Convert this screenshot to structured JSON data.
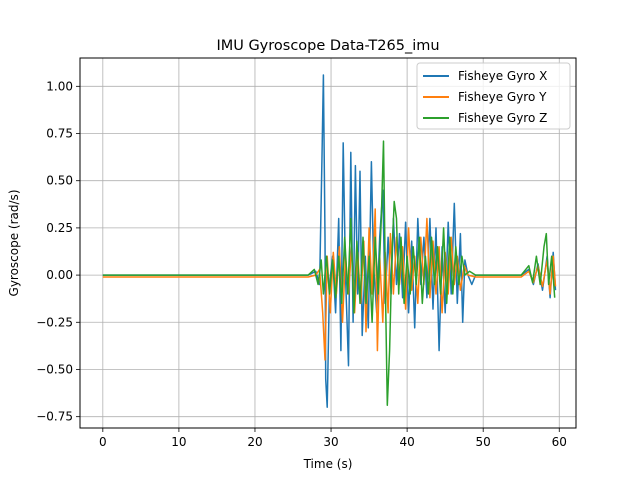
{
  "chart_data": {
    "type": "line",
    "title": "IMU Gyroscope Data-T265_imu",
    "xlabel": "Time (s)",
    "ylabel": "Gyroscope (rad/s)",
    "xlim": [
      -3,
      62.2
    ],
    "ylim": [
      -0.81,
      1.15
    ],
    "xticks": [
      0,
      10,
      20,
      30,
      40,
      50,
      60
    ],
    "yticks": [
      -0.75,
      -0.5,
      -0.25,
      0.0,
      0.25,
      0.5,
      0.75,
      1.0
    ],
    "xtick_labels": [
      "0",
      "10",
      "20",
      "30",
      "40",
      "50",
      "60"
    ],
    "ytick_labels": [
      "−0.75",
      "−0.50",
      "−0.25",
      "0.00",
      "0.25",
      "0.50",
      "0.75",
      "1.00"
    ],
    "grid": true,
    "legend_position": "top-right",
    "series": [
      {
        "name": "Fisheye Gyro X",
        "color": "#1f77b4",
        "points": [
          [
            0,
            0.0
          ],
          [
            5,
            0.0
          ],
          [
            10,
            0.0
          ],
          [
            15,
            0.0
          ],
          [
            20,
            0.0
          ],
          [
            25,
            0.0
          ],
          [
            27,
            0.0
          ],
          [
            28,
            0.02
          ],
          [
            28.5,
            -0.05
          ],
          [
            28.8,
            0.6
          ],
          [
            29,
            1.06
          ],
          [
            29.2,
            0.2
          ],
          [
            29.3,
            -0.55
          ],
          [
            29.5,
            -0.7
          ],
          [
            29.8,
            -0.05
          ],
          [
            30.2,
            0.1
          ],
          [
            30.6,
            -0.2
          ],
          [
            31,
            0.3
          ],
          [
            31.3,
            -0.4
          ],
          [
            31.6,
            0.7
          ],
          [
            31.9,
            0.0
          ],
          [
            32.3,
            -0.48
          ],
          [
            32.6,
            0.65
          ],
          [
            32.9,
            -0.25
          ],
          [
            33.2,
            0.58
          ],
          [
            33.5,
            -0.1
          ],
          [
            33.8,
            0.55
          ],
          [
            34.1,
            -0.32
          ],
          [
            34.5,
            0.1
          ],
          [
            34.9,
            -0.28
          ],
          [
            35.3,
            0.6
          ],
          [
            35.6,
            0.05
          ],
          [
            36,
            -0.2
          ],
          [
            36.4,
            0.2
          ],
          [
            36.8,
            0.45
          ],
          [
            37.1,
            -0.15
          ],
          [
            37.5,
            0.2
          ],
          [
            37.9,
            -0.1
          ],
          [
            38.2,
            0.3
          ],
          [
            38.6,
            -0.05
          ],
          [
            39,
            0.22
          ],
          [
            39.4,
            -0.12
          ],
          [
            39.8,
            0.28
          ],
          [
            40.2,
            -0.2
          ],
          [
            40.6,
            0.18
          ],
          [
            41,
            -0.28
          ],
          [
            41.4,
            0.3
          ],
          [
            41.8,
            -0.05
          ],
          [
            42.2,
            0.2
          ],
          [
            42.6,
            -0.12
          ],
          [
            43,
            0.3
          ],
          [
            43.4,
            -0.18
          ],
          [
            43.8,
            0.25
          ],
          [
            44.2,
            -0.4
          ],
          [
            44.6,
            0.15
          ],
          [
            45,
            -0.2
          ],
          [
            45.4,
            0.28
          ],
          [
            45.8,
            -0.1
          ],
          [
            46.2,
            0.38
          ],
          [
            46.6,
            -0.15
          ],
          [
            47,
            0.22
          ],
          [
            47.3,
            -0.25
          ],
          [
            47.6,
            0.08
          ],
          [
            48,
            0.0
          ],
          [
            48.5,
            -0.05
          ],
          [
            49,
            0.0
          ],
          [
            52,
            0.0
          ],
          [
            55,
            0.0
          ],
          [
            56,
            0.03
          ],
          [
            56.6,
            -0.05
          ],
          [
            57.2,
            0.06
          ],
          [
            57.8,
            -0.08
          ],
          [
            58.4,
            0.1
          ],
          [
            58.8,
            -0.12
          ],
          [
            59.2,
            0.12
          ],
          [
            59.5,
            -0.08
          ]
        ]
      },
      {
        "name": "Fisheye Gyro Y",
        "color": "#ff7f0e",
        "points": [
          [
            0,
            -0.01
          ],
          [
            5,
            -0.01
          ],
          [
            10,
            -0.01
          ],
          [
            15,
            -0.01
          ],
          [
            20,
            -0.01
          ],
          [
            25,
            -0.01
          ],
          [
            27,
            -0.01
          ],
          [
            28,
            0.0
          ],
          [
            28.5,
            0.03
          ],
          [
            28.9,
            -0.2
          ],
          [
            29.2,
            -0.45
          ],
          [
            29.5,
            0.1
          ],
          [
            29.9,
            -0.2
          ],
          [
            30.3,
            0.12
          ],
          [
            30.7,
            -0.1
          ],
          [
            31.1,
            0.15
          ],
          [
            31.5,
            -0.25
          ],
          [
            31.9,
            0.1
          ],
          [
            32.3,
            -0.1
          ],
          [
            32.7,
            0.15
          ],
          [
            33.1,
            -0.2
          ],
          [
            33.5,
            0.12
          ],
          [
            33.9,
            -0.15
          ],
          [
            34.3,
            0.18
          ],
          [
            34.6,
            -0.3
          ],
          [
            35,
            0.25
          ],
          [
            35.4,
            -0.1
          ],
          [
            35.8,
            0.35
          ],
          [
            36.1,
            -0.4
          ],
          [
            36.4,
            0.1
          ],
          [
            36.8,
            -0.25
          ],
          [
            37.1,
            0.12
          ],
          [
            37.5,
            -0.2
          ],
          [
            37.8,
            0.22
          ],
          [
            38.2,
            -0.1
          ],
          [
            38.6,
            0.2
          ],
          [
            39,
            -0.05
          ],
          [
            39.4,
            0.15
          ],
          [
            39.8,
            -0.18
          ],
          [
            40.2,
            0.25
          ],
          [
            40.6,
            -0.08
          ],
          [
            41,
            0.1
          ],
          [
            41.4,
            -0.15
          ],
          [
            41.8,
            0.2
          ],
          [
            42.2,
            -0.05
          ],
          [
            42.6,
            0.3
          ],
          [
            43,
            -0.12
          ],
          [
            43.4,
            0.18
          ],
          [
            43.8,
            -0.1
          ],
          [
            44.2,
            0.15
          ],
          [
            44.6,
            -0.2
          ],
          [
            45,
            0.12
          ],
          [
            45.4,
            -0.1
          ],
          [
            45.8,
            0.2
          ],
          [
            46.2,
            -0.05
          ],
          [
            46.6,
            0.1
          ],
          [
            47,
            -0.08
          ],
          [
            47.5,
            0.05
          ],
          [
            48,
            0.0
          ],
          [
            49,
            -0.01
          ],
          [
            52,
            -0.01
          ],
          [
            55,
            -0.01
          ],
          [
            56,
            0.02
          ],
          [
            56.6,
            -0.04
          ],
          [
            57.2,
            0.05
          ],
          [
            57.8,
            -0.06
          ],
          [
            58.4,
            0.08
          ],
          [
            58.8,
            -0.1
          ],
          [
            59.2,
            0.1
          ],
          [
            59.5,
            -0.06
          ]
        ]
      },
      {
        "name": "Fisheye Gyro Z",
        "color": "#2ca02c",
        "points": [
          [
            0,
            0.0
          ],
          [
            5,
            0.0
          ],
          [
            10,
            0.0
          ],
          [
            15,
            0.0
          ],
          [
            20,
            0.0
          ],
          [
            25,
            0.0
          ],
          [
            27,
            0.0
          ],
          [
            27.8,
            0.03
          ],
          [
            28.3,
            -0.05
          ],
          [
            28.7,
            0.08
          ],
          [
            29,
            -0.1
          ],
          [
            29.4,
            0.1
          ],
          [
            29.8,
            -0.1
          ],
          [
            30.2,
            0.08
          ],
          [
            30.6,
            -0.12
          ],
          [
            31,
            0.1
          ],
          [
            31.4,
            -0.15
          ],
          [
            31.8,
            0.2
          ],
          [
            32.2,
            -0.1
          ],
          [
            32.6,
            0.3
          ],
          [
            33,
            -0.2
          ],
          [
            33.4,
            0.18
          ],
          [
            33.8,
            -0.15
          ],
          [
            34.2,
            0.2
          ],
          [
            34.6,
            -0.15
          ],
          [
            35,
            0.1
          ],
          [
            35.4,
            -0.25
          ],
          [
            35.8,
            0.2
          ],
          [
            36.2,
            -0.1
          ],
          [
            36.6,
            0.3
          ],
          [
            36.9,
            0.71
          ],
          [
            37.2,
            -0.2
          ],
          [
            37.4,
            -0.69
          ],
          [
            37.7,
            -0.4
          ],
          [
            38,
            0.1
          ],
          [
            38.3,
            0.39
          ],
          [
            38.6,
            0.3
          ],
          [
            38.9,
            -0.1
          ],
          [
            39.2,
            0.2
          ],
          [
            39.6,
            -0.15
          ],
          [
            40,
            0.1
          ],
          [
            40.4,
            -0.1
          ],
          [
            40.8,
            0.15
          ],
          [
            41.2,
            -0.05
          ],
          [
            41.6,
            0.2
          ],
          [
            42,
            -0.15
          ],
          [
            42.4,
            0.1
          ],
          [
            42.8,
            -0.1
          ],
          [
            43.2,
            0.2
          ],
          [
            43.6,
            -0.05
          ],
          [
            44,
            0.15
          ],
          [
            44.4,
            -0.1
          ],
          [
            44.8,
            0.25
          ],
          [
            45.2,
            -0.15
          ],
          [
            45.6,
            0.2
          ],
          [
            46,
            -0.1
          ],
          [
            46.4,
            0.15
          ],
          [
            46.8,
            -0.05
          ],
          [
            47.2,
            0.1
          ],
          [
            47.6,
            0.0
          ],
          [
            48.2,
            0.02
          ],
          [
            49,
            0.0
          ],
          [
            52,
            0.0
          ],
          [
            55,
            0.0
          ],
          [
            56,
            0.05
          ],
          [
            56.5,
            -0.04
          ],
          [
            57,
            0.1
          ],
          [
            57.5,
            -0.05
          ],
          [
            58,
            0.15
          ],
          [
            58.3,
            0.22
          ],
          [
            58.6,
            -0.05
          ],
          [
            59,
            0.1
          ],
          [
            59.4,
            -0.12
          ]
        ]
      }
    ]
  }
}
